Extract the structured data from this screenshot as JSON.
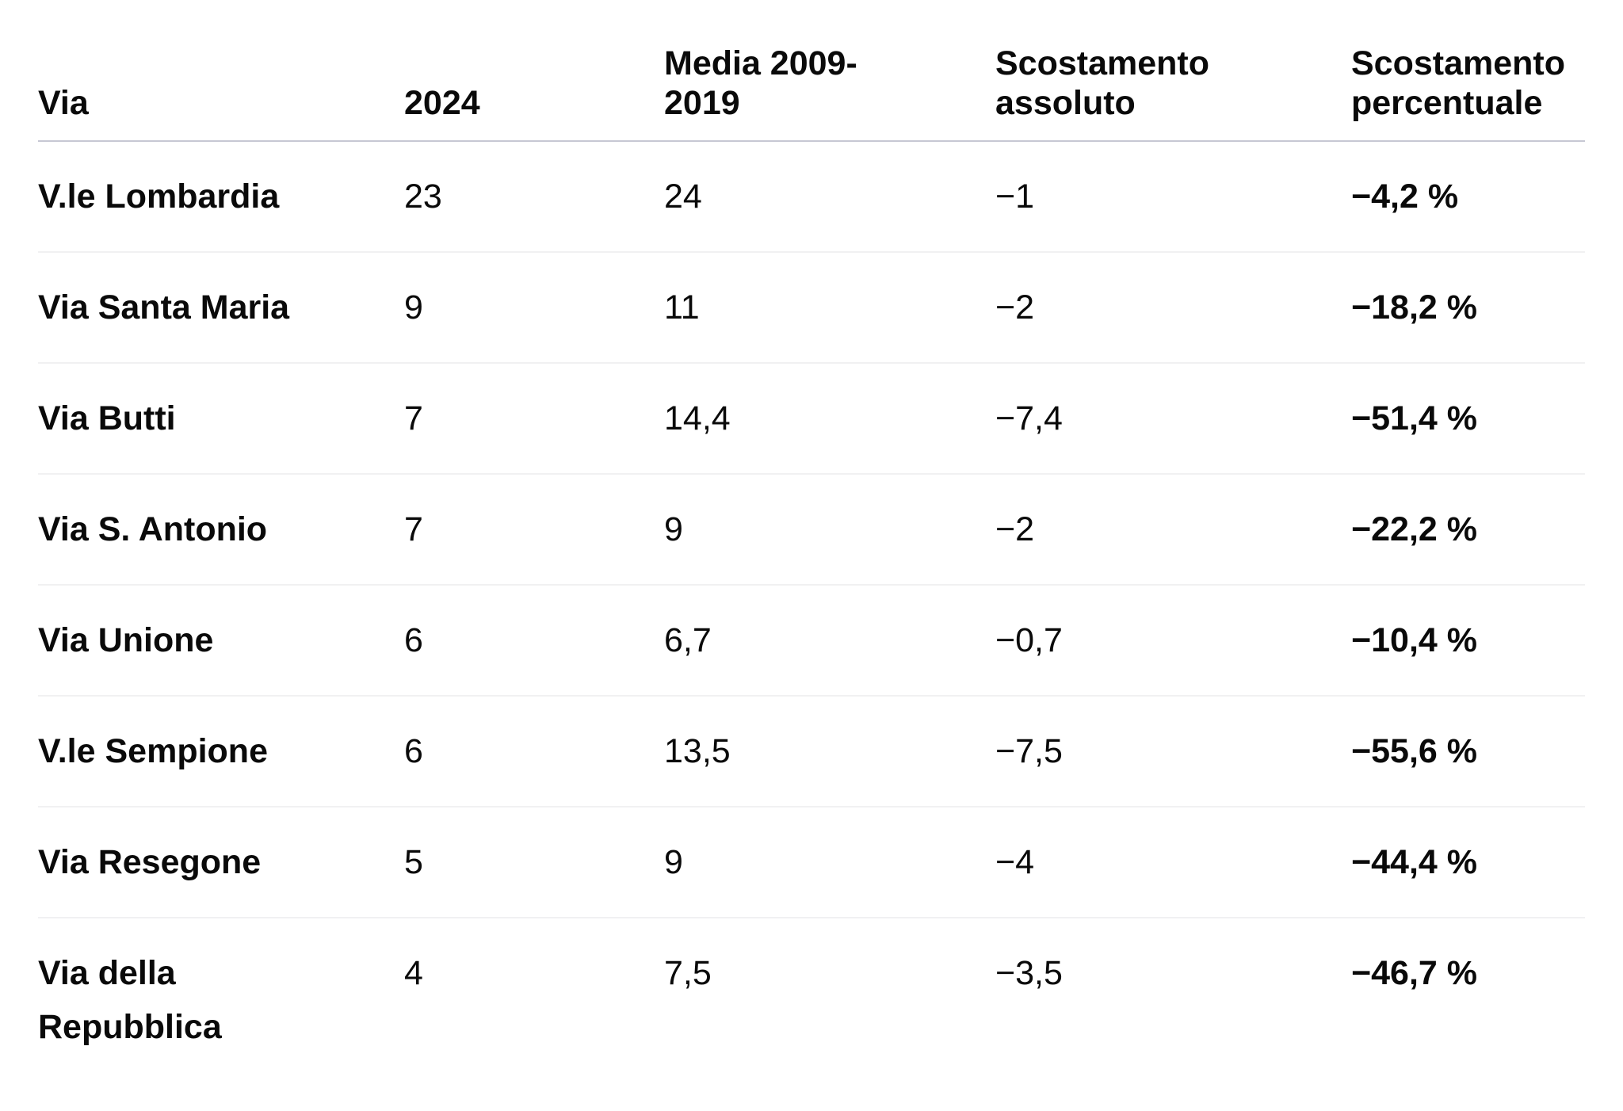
{
  "colors": {
    "background": "#ffffff",
    "text": "#0a0a0a",
    "header_divider": "#c7c8d3",
    "row_divider": "#f1f1f2"
  },
  "table": {
    "columns": [
      {
        "label": "Via"
      },
      {
        "label": "2024"
      },
      {
        "label": "Media 2009-2019"
      },
      {
        "label": "Scostamento assoluto"
      },
      {
        "label": "Scostamento percentuale"
      }
    ],
    "rows": [
      {
        "via": "V.le Lombardia",
        "v2024": "23",
        "media": "24",
        "scostamento_assoluto": "−1",
        "scostamento_percentuale": "−4,2 %"
      },
      {
        "via": "Via Santa Maria",
        "v2024": "9",
        "media": "11",
        "scostamento_assoluto": "−2",
        "scostamento_percentuale": "−18,2 %"
      },
      {
        "via": "Via Butti",
        "v2024": "7",
        "media": "14,4",
        "scostamento_assoluto": "−7,4",
        "scostamento_percentuale": "−51,4 %"
      },
      {
        "via": "Via S. Antonio",
        "v2024": "7",
        "media": "9",
        "scostamento_assoluto": "−2",
        "scostamento_percentuale": "−22,2 %"
      },
      {
        "via": "Via Unione",
        "v2024": "6",
        "media": "6,7",
        "scostamento_assoluto": "−0,7",
        "scostamento_percentuale": "−10,4 %"
      },
      {
        "via": "V.le Sempione",
        "v2024": "6",
        "media": "13,5",
        "scostamento_assoluto": "−7,5",
        "scostamento_percentuale": "−55,6 %"
      },
      {
        "via": "Via Resegone",
        "v2024": "5",
        "media": "9",
        "scostamento_assoluto": "−4",
        "scostamento_percentuale": "−44,4 %"
      },
      {
        "via": "Via della Repubblica",
        "v2024": "4",
        "media": "7,5",
        "scostamento_assoluto": "−3,5",
        "scostamento_percentuale": "−46,7 %"
      }
    ]
  },
  "chart_data": {
    "type": "table",
    "title": "",
    "columns": [
      "Via",
      "2024",
      "Media 2009-2019",
      "Scostamento assoluto",
      "Scostamento percentuale"
    ],
    "rows": [
      [
        "V.le Lombardia",
        23,
        24,
        -1,
        "-4,2 %"
      ],
      [
        "Via Santa Maria",
        9,
        11,
        -2,
        "-18,2 %"
      ],
      [
        "Via Butti",
        7,
        14.4,
        -7.4,
        "-51,4 %"
      ],
      [
        "Via S. Antonio",
        7,
        9,
        -2,
        "-22,2 %"
      ],
      [
        "Via Unione",
        6,
        6.7,
        -0.7,
        "-10,4 %"
      ],
      [
        "V.le Sempione",
        6,
        13.5,
        -7.5,
        "-55,6 %"
      ],
      [
        "Via Resegone",
        5,
        9,
        -4,
        "-44,4 %"
      ],
      [
        "Via della Repubblica",
        4,
        7.5,
        -3.5,
        "-46,7 %"
      ]
    ]
  }
}
